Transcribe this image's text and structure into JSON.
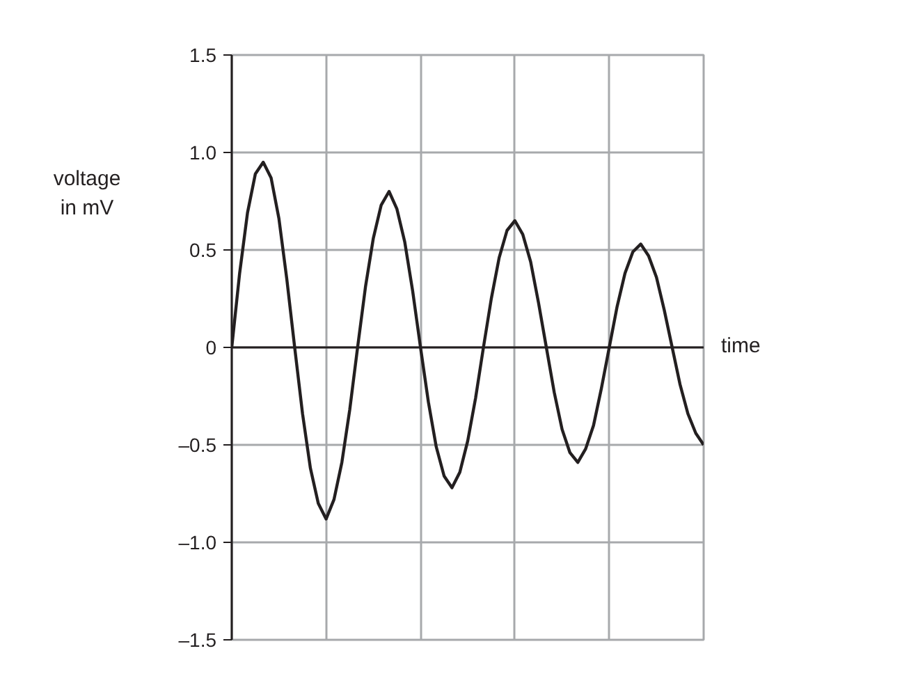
{
  "chart_data": {
    "type": "line",
    "xlabel": "time",
    "ylabel": "voltage\nin mV",
    "categories": [
      null,
      null,
      null,
      null,
      null,
      null,
      null,
      null,
      null,
      null,
      null,
      null,
      null,
      null,
      null,
      null,
      null,
      null,
      null,
      null,
      null,
      null,
      null,
      null,
      null,
      null,
      null,
      null,
      null,
      null,
      null,
      null,
      null,
      null,
      null,
      null,
      null,
      null,
      null,
      null,
      null,
      null,
      null,
      null,
      null,
      null,
      null,
      null,
      null,
      null,
      null,
      null,
      null,
      null,
      null,
      null,
      null,
      null,
      null,
      null,
      null
    ],
    "series": [
      {
        "color": "#231f20",
        "values": [
          0,
          0.38,
          0.69,
          0.89,
          0.95,
          0.87,
          0.66,
          0.35,
          0,
          -0.34,
          -0.62,
          -0.8,
          -0.88,
          -0.78,
          -0.59,
          -0.32,
          0,
          0.31,
          0.56,
          0.73,
          0.8,
          0.71,
          0.54,
          0.29,
          0,
          -0.28,
          -0.51,
          -0.66,
          -0.72,
          -0.64,
          -0.48,
          -0.26,
          0,
          0.25,
          0.46,
          0.6,
          0.65,
          0.58,
          0.44,
          0.23,
          0,
          -0.23,
          -0.42,
          -0.54,
          -0.59,
          -0.52,
          -0.4,
          -0.21,
          0,
          0.21,
          0.38,
          0.49,
          0.53,
          0.47,
          0.36,
          0.19,
          0,
          -0.19,
          -0.34,
          -0.44,
          -0.5
        ]
      }
    ],
    "ylim": [
      -1.5,
      1.5
    ],
    "yticks": [
      {
        "value": -1.5,
        "label": "–1.5"
      },
      {
        "value": -1.0,
        "label": "–1.0"
      },
      {
        "value": -0.5,
        "label": "–0.5"
      },
      {
        "value": 0,
        "label": "0"
      },
      {
        "value": 0.5,
        "label": "0.5"
      },
      {
        "value": 1.0,
        "label": "1.0"
      },
      {
        "value": 1.5,
        "label": "1.5"
      }
    ],
    "tick_labels": "y",
    "grid": true,
    "marker": "none",
    "line_style": "solid"
  }
}
